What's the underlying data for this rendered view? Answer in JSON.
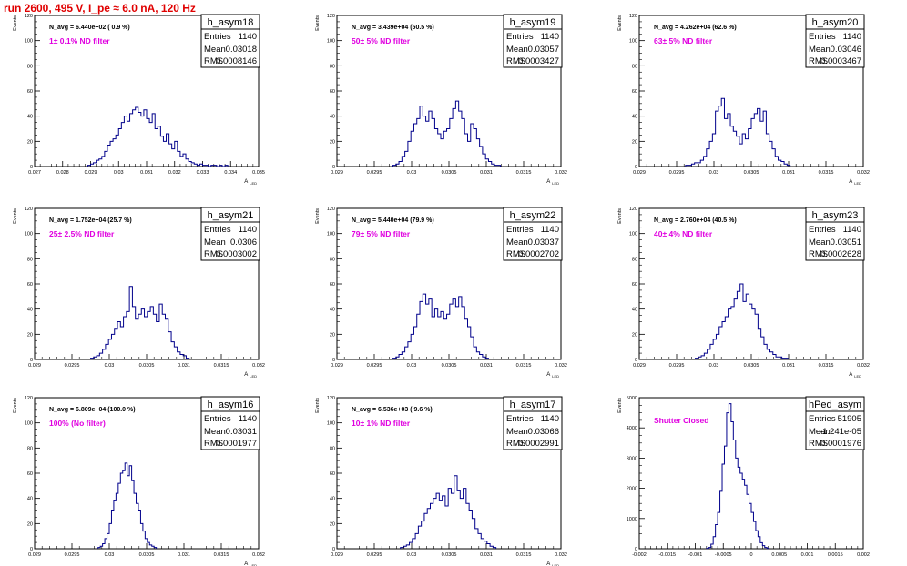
{
  "title": "run 2600,   495 V, I_pe ≈ 6.0 nA, 120 Hz",
  "colors": {
    "title": "#e00000",
    "annotation": "#e000e0",
    "histogram": "#00008b",
    "axis": "#000000"
  },
  "chart_data": [
    {
      "type": "histogram",
      "name": "h_asym18",
      "navg": "N_avg = 6.440e+02 ( 0.9 %)",
      "filter": "1± 0.1% ND filter",
      "stats": {
        "entries_label": "Entries",
        "entries": "1140",
        "mean_label": "Mean",
        "mean": "0.03018",
        "rms_label": "RMS",
        "rms": "0.0008146"
      },
      "xlabel": "A",
      "xsub": "LED",
      "ylabel": "Events",
      "xlim": [
        0.027,
        0.035
      ],
      "ylim": [
        0,
        120
      ],
      "xticks": [
        0.027,
        0.028,
        0.029,
        0.03,
        0.031,
        0.032,
        0.033,
        0.034,
        0.035
      ],
      "xtick_labels": [
        "0.027",
        "0.028",
        "0.029",
        "0.03",
        "0.031",
        "0.032",
        "0.033",
        "0.034",
        "0.035"
      ],
      "yticks": [
        0,
        20,
        40,
        60,
        80,
        100,
        120
      ],
      "ytick_labels": [
        "0",
        "20",
        "40",
        "60",
        "80",
        "100",
        "120"
      ],
      "bins": {
        "start": 0.0289,
        "width": 0.0001,
        "counts": [
          1,
          2,
          3,
          5,
          6,
          8,
          12,
          17,
          20,
          22,
          25,
          30,
          35,
          40,
          36,
          42,
          45,
          47,
          43,
          40,
          45,
          38,
          35,
          42,
          30,
          32,
          24,
          20,
          26,
          18,
          14,
          20,
          12,
          8,
          10,
          6,
          4,
          3,
          2,
          1,
          2,
          1,
          1,
          0,
          1,
          1,
          0,
          1,
          0,
          1
        ]
      }
    },
    {
      "type": "histogram",
      "name": "h_asym19",
      "navg": "N_avg = 3.439e+04 (50.5 %)",
      "filter": "50± 5% ND filter",
      "stats": {
        "entries_label": "Entries",
        "entries": "1140",
        "mean_label": "Mean",
        "mean": "0.03057",
        "rms_label": "RMS",
        "rms": "0.0003427"
      },
      "xlabel": "A",
      "xsub": "LED",
      "ylabel": "Events",
      "xlim": [
        0.029,
        0.032
      ],
      "ylim": [
        0,
        120
      ],
      "xticks": [
        0.029,
        0.0295,
        0.03,
        0.0305,
        0.031,
        0.0315,
        0.032
      ],
      "xtick_labels": [
        "0.029",
        "0.0295",
        "0.03",
        "0.0305",
        "0.031",
        "0.0315",
        "0.032"
      ],
      "yticks": [
        0,
        20,
        40,
        60,
        80,
        100,
        120
      ],
      "ytick_labels": [
        "0",
        "20",
        "40",
        "60",
        "80",
        "100",
        "120"
      ],
      "bins": {
        "start": 0.02975,
        "width": 4e-05,
        "counts": [
          1,
          2,
          4,
          8,
          12,
          20,
          28,
          34,
          38,
          48,
          40,
          36,
          44,
          38,
          30,
          26,
          22,
          28,
          30,
          38,
          46,
          52,
          44,
          38,
          26,
          20,
          34,
          30,
          22,
          16,
          10,
          6,
          4,
          2,
          1,
          1
        ]
      }
    },
    {
      "type": "histogram",
      "name": "h_asym20",
      "navg": "N_avg = 4.262e+04 (62.6 %)",
      "filter": "63± 5% ND filter",
      "stats": {
        "entries_label": "Entries",
        "entries": "1140",
        "mean_label": "Mean",
        "mean": "0.03046",
        "rms_label": "RMS",
        "rms": "0.0003467"
      },
      "xlabel": "A",
      "xsub": "LED",
      "ylabel": "Events",
      "xlim": [
        0.029,
        0.032
      ],
      "ylim": [
        0,
        120
      ],
      "xticks": [
        0.029,
        0.0295,
        0.03,
        0.0305,
        0.031,
        0.0315,
        0.032
      ],
      "xtick_labels": [
        "0.029",
        "0.0295",
        "0.03",
        "0.0305",
        "0.031",
        "0.0315",
        "0.032"
      ],
      "yticks": [
        0,
        20,
        40,
        60,
        80,
        100,
        120
      ],
      "ytick_labels": [
        "0",
        "20",
        "40",
        "60",
        "80",
        "100",
        "120"
      ],
      "bins": {
        "start": 0.02962,
        "width": 4e-05,
        "counts": [
          1,
          1,
          2,
          3,
          3,
          5,
          8,
          14,
          20,
          26,
          44,
          48,
          54,
          38,
          42,
          32,
          28,
          24,
          18,
          26,
          22,
          30,
          38,
          42,
          46,
          36,
          44,
          26,
          20,
          14,
          8,
          5,
          4,
          2,
          1
        ]
      }
    },
    {
      "type": "histogram",
      "name": "h_asym21",
      "navg": "N_avg = 1.752e+04 (25.7 %)",
      "filter": "25± 2.5% ND filter",
      "stats": {
        "entries_label": "Entries",
        "entries": "1140",
        "mean_label": "Mean",
        "mean": "0.0306",
        "rms_label": "RMS",
        "rms": "0.0003002"
      },
      "xlabel": "A",
      "xsub": "LED",
      "ylabel": "Events",
      "xlim": [
        0.029,
        0.032
      ],
      "ylim": [
        0,
        120
      ],
      "xticks": [
        0.029,
        0.0295,
        0.03,
        0.0305,
        0.031,
        0.0315,
        0.032
      ],
      "xtick_labels": [
        "0.029",
        "0.0295",
        "0.03",
        "0.0305",
        "0.031",
        "0.0315",
        "0.032"
      ],
      "yticks": [
        0,
        20,
        40,
        60,
        80,
        100,
        120
      ],
      "ytick_labels": [
        "0",
        "20",
        "40",
        "60",
        "80",
        "100",
        "120"
      ],
      "bins": {
        "start": 0.02975,
        "width": 4e-05,
        "counts": [
          1,
          2,
          3,
          5,
          8,
          12,
          16,
          20,
          24,
          30,
          26,
          34,
          38,
          58,
          42,
          32,
          36,
          40,
          34,
          38,
          42,
          36,
          30,
          44,
          36,
          32,
          22,
          14,
          10,
          6,
          4,
          3,
          1
        ]
      }
    },
    {
      "type": "histogram",
      "name": "h_asym22",
      "navg": "N_avg = 5.440e+04 (79.9 %)",
      "filter": "79± 5% ND filter",
      "stats": {
        "entries_label": "Entries",
        "entries": "1140",
        "mean_label": "Mean",
        "mean": "0.03037",
        "rms_label": "RMS",
        "rms": "0.0002702"
      },
      "xlabel": "A",
      "xsub": "LED",
      "ylabel": "Events",
      "xlim": [
        0.029,
        0.032
      ],
      "ylim": [
        0,
        120
      ],
      "xticks": [
        0.029,
        0.0295,
        0.03,
        0.0305,
        0.031,
        0.0315,
        0.032
      ],
      "xtick_labels": [
        "0.029",
        "0.0295",
        "0.03",
        "0.0305",
        "0.031",
        "0.0315",
        "0.032"
      ],
      "yticks": [
        0,
        20,
        40,
        60,
        80,
        100,
        120
      ],
      "ytick_labels": [
        "0",
        "20",
        "40",
        "60",
        "80",
        "100",
        "120"
      ],
      "bins": {
        "start": 0.02975,
        "width": 4e-05,
        "counts": [
          1,
          2,
          4,
          6,
          10,
          14,
          20,
          26,
          36,
          46,
          52,
          44,
          48,
          34,
          40,
          34,
          38,
          32,
          36,
          44,
          48,
          42,
          50,
          42,
          32,
          26,
          18,
          10,
          6,
          4,
          2,
          1
        ]
      }
    },
    {
      "type": "histogram",
      "name": "h_asym23",
      "navg": "N_avg = 2.760e+04 (40.5 %)",
      "filter": "40± 4% ND filter",
      "stats": {
        "entries_label": "Entries",
        "entries": "1140",
        "mean_label": "Mean",
        "mean": "0.03051",
        "rms_label": "RMS",
        "rms": "0.0002628"
      },
      "xlabel": "A",
      "xsub": "LED",
      "ylabel": "Events",
      "xlim": [
        0.029,
        0.032
      ],
      "ylim": [
        0,
        120
      ],
      "xticks": [
        0.029,
        0.0295,
        0.03,
        0.0305,
        0.031,
        0.0315,
        0.032
      ],
      "xtick_labels": [
        "0.029",
        "0.0295",
        "0.03",
        "0.0305",
        "0.031",
        "0.0315",
        "0.032"
      ],
      "yticks": [
        0,
        20,
        40,
        60,
        80,
        100,
        120
      ],
      "ytick_labels": [
        "0",
        "20",
        "40",
        "60",
        "80",
        "100",
        "120"
      ],
      "bins": {
        "start": 0.02975,
        "width": 4e-05,
        "counts": [
          1,
          2,
          3,
          5,
          8,
          12,
          16,
          20,
          26,
          30,
          34,
          40,
          42,
          48,
          54,
          60,
          46,
          52,
          44,
          40,
          36,
          24,
          18,
          12,
          8,
          6,
          4,
          2,
          2,
          1,
          1
        ]
      }
    },
    {
      "type": "histogram",
      "name": "h_asym16",
      "navg": "N_avg = 6.809e+04 (100.0 %)",
      "filter": "100% (No filter)",
      "stats": {
        "entries_label": "Entries",
        "entries": "1140",
        "mean_label": "Mean",
        "mean": "0.03031",
        "rms_label": "RMS",
        "rms": "0.0001977"
      },
      "xlabel": "A",
      "xsub": "LED",
      "ylabel": "Events",
      "xlim": [
        0.029,
        0.032
      ],
      "ylim": [
        0,
        120
      ],
      "xticks": [
        0.029,
        0.0295,
        0.03,
        0.0305,
        0.031,
        0.0315,
        0.032
      ],
      "xtick_labels": [
        "0.029",
        "0.0295",
        "0.03",
        "0.0305",
        "0.031",
        "0.0315",
        "0.032"
      ],
      "yticks": [
        0,
        20,
        40,
        60,
        80,
        100,
        120
      ],
      "ytick_labels": [
        "0",
        "20",
        "40",
        "60",
        "80",
        "100",
        "120"
      ],
      "bins": {
        "start": 0.02985,
        "width": 3e-05,
        "counts": [
          1,
          2,
          4,
          8,
          12,
          20,
          30,
          38,
          44,
          52,
          60,
          62,
          68,
          58,
          66,
          54,
          44,
          36,
          30,
          20,
          14,
          8,
          5,
          3,
          2,
          1
        ]
      }
    },
    {
      "type": "histogram",
      "name": "h_asym17",
      "navg": "N_avg = 6.536e+03 ( 9.6 %)",
      "filter": "10± 1% ND filter",
      "stats": {
        "entries_label": "Entries",
        "entries": "1140",
        "mean_label": "Mean",
        "mean": "0.03066",
        "rms_label": "RMS",
        "rms": "0.0002991"
      },
      "xlabel": "A",
      "xsub": "LED",
      "ylabel": "Events",
      "xlim": [
        0.029,
        0.032
      ],
      "ylim": [
        0,
        120
      ],
      "xticks": [
        0.029,
        0.0295,
        0.03,
        0.0305,
        0.031,
        0.0315,
        0.032
      ],
      "xtick_labels": [
        "0.029",
        "0.0295",
        "0.03",
        "0.0305",
        "0.031",
        "0.0315",
        "0.032"
      ],
      "yticks": [
        0,
        20,
        40,
        60,
        80,
        100,
        120
      ],
      "ytick_labels": [
        "0",
        "20",
        "40",
        "60",
        "80",
        "100",
        "120"
      ],
      "bins": {
        "start": 0.02985,
        "width": 4e-05,
        "counts": [
          1,
          2,
          3,
          5,
          8,
          12,
          18,
          22,
          28,
          32,
          36,
          40,
          44,
          38,
          42,
          34,
          48,
          44,
          58,
          46,
          40,
          48,
          36,
          30,
          24,
          16,
          12,
          8,
          6,
          4,
          2,
          1
        ]
      }
    },
    {
      "type": "histogram",
      "name": "hPed_asym",
      "navg": "",
      "filter": "Shutter Closed",
      "stats": {
        "entries_label": "Entries",
        "entries": "51905",
        "mean_label": "Mean",
        "mean": "-1.241e-05",
        "rms_label": "RMS",
        "rms": "0.0001976"
      },
      "xlabel": "",
      "xsub": "",
      "ylabel": "Events",
      "xlim": [
        -0.002,
        0.002
      ],
      "ylim": [
        0,
        5000
      ],
      "xticks": [
        -0.002,
        -0.0015,
        -0.001,
        -0.0005,
        0,
        0.0005,
        0.001,
        0.0015,
        0.002
      ],
      "xtick_labels": [
        "-0.002",
        "-0.0015",
        "-0.001",
        "-0.0005",
        "0",
        "0.0005",
        "0.001",
        "0.0015",
        "0.002"
      ],
      "yticks": [
        0,
        1000,
        2000,
        3000,
        4000,
        5000
      ],
      "ytick_labels": [
        "0",
        "1000",
        "2000",
        "3000",
        "4000",
        "5000"
      ],
      "bins": {
        "start": -0.0008,
        "width": 4e-05,
        "counts": [
          10,
          40,
          150,
          400,
          800,
          1200,
          1900,
          2800,
          3400,
          4500,
          4800,
          4200,
          3600,
          3000,
          2700,
          2500,
          2300,
          2100,
          1800,
          1500,
          1200,
          900,
          600,
          400,
          200,
          100,
          40,
          10
        ]
      }
    }
  ]
}
